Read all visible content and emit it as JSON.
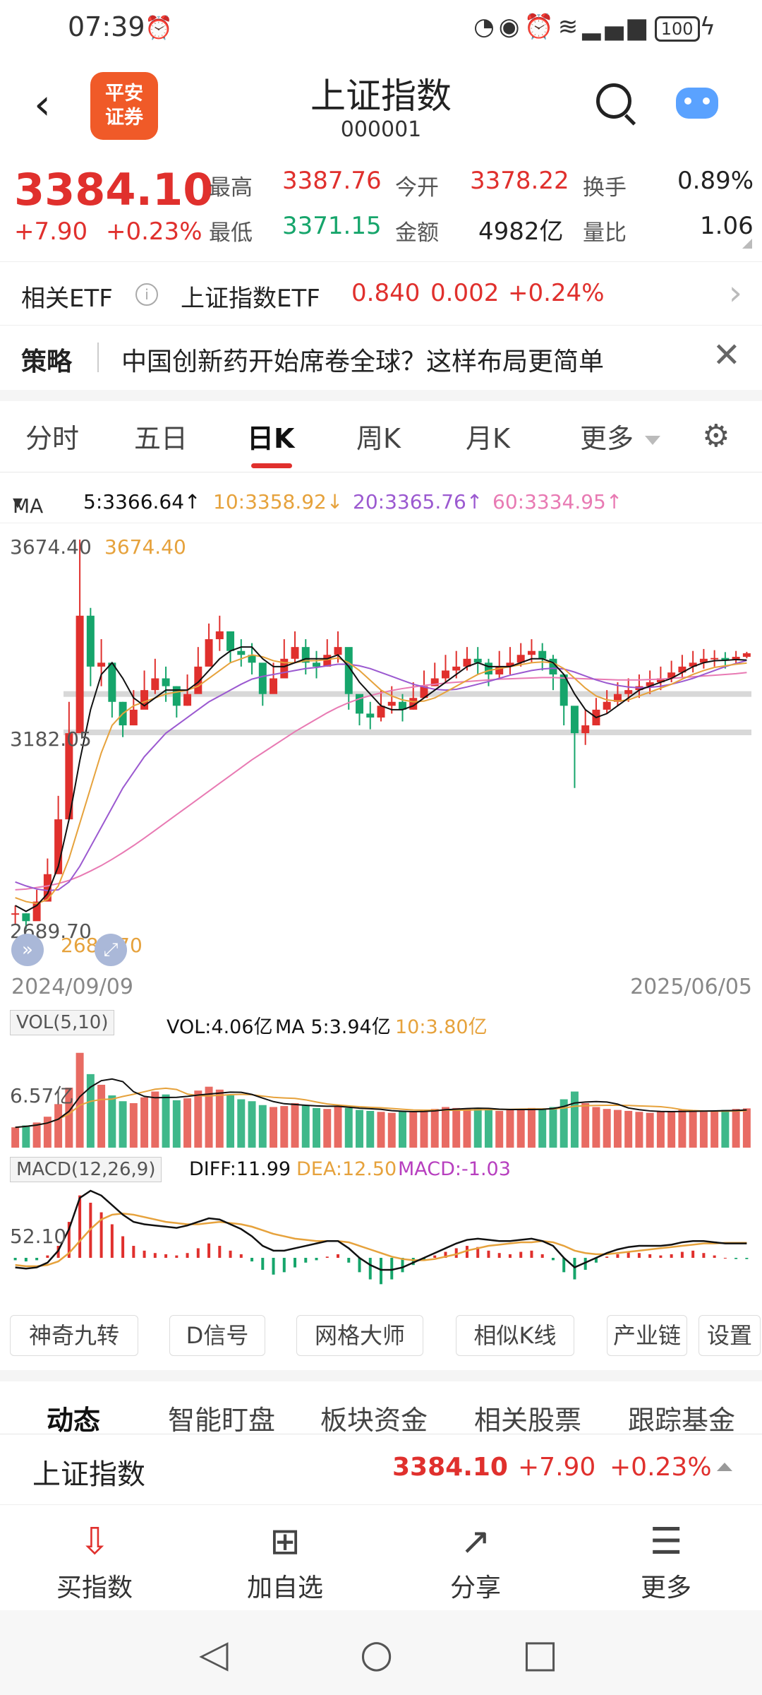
{
  "status": {
    "time": "07:39",
    "battery": "100"
  },
  "header": {
    "back_label": "‹",
    "logo_line1": "平安",
    "logo_line2": "证券",
    "title": "上证指数",
    "code": "000001"
  },
  "quote": {
    "price": "3384.10",
    "change": "+7.90",
    "change_pct": "+0.23%",
    "high_label": "最高",
    "high": "3387.76",
    "open_label": "今开",
    "open": "3378.22",
    "turnover_label": "换手",
    "turnover": "0.89%",
    "low_label": "最低",
    "low": "3371.15",
    "amount_label": "金额",
    "amount": "4982亿",
    "vol_ratio_label": "量比",
    "vol_ratio": "1.06"
  },
  "etf": {
    "label": "相关ETF",
    "info_icon": "i",
    "name": "上证指数ETF",
    "price": "0.840",
    "change": "0.002",
    "change_pct": "+0.24%"
  },
  "strategy": {
    "tag": "策略",
    "text": "中国创新药开始席卷全球？这样布局更简单",
    "close": "✕"
  },
  "tabs": {
    "items": [
      "分时",
      "五日",
      "日K",
      "周K",
      "月K",
      "更多"
    ],
    "active": "日K"
  },
  "ma": {
    "label": "MA",
    "ma5": "5:3366.64↑",
    "ma10": "10:3358.92↓",
    "ma20": "20:3365.76↑",
    "ma60": "60:3334.95↑",
    "colors": {
      "ma5": "#111111",
      "ma10": "#e6a23c",
      "ma20": "#9b59d0",
      "ma60": "#e87ab3"
    }
  },
  "chart": {
    "max_label": "3674.40",
    "max_tag": "3674.40",
    "mid_label": "3182.05",
    "min_label": "2689.70",
    "min_tag": "2689.70",
    "start_date": "2024/09/09",
    "end_date": "2025/06/05"
  },
  "vol": {
    "legend_box": "VOL(5,10)",
    "vol": "VOL:4.06亿",
    "ma5": "MA 5:3.94亿",
    "ma10": "10:3.80亿",
    "axis": "6.57亿"
  },
  "macd": {
    "legend_box": "MACD(12,26,9)",
    "diff": "DIFF:11.99",
    "dea": "DEA:12.50",
    "macd": "MACD:-1.03",
    "axis": "52.10"
  },
  "tools": [
    "神奇九转",
    "D信号",
    "网格大师",
    "相似K线",
    "产业链",
    "设置"
  ],
  "info_tabs": [
    "动态",
    "智能盯盘",
    "板块资金",
    "相关股票",
    "跟踪基金"
  ],
  "bottom_quote": {
    "name": "上证指数",
    "price": "3384.10",
    "change": "+7.90",
    "change_pct": "+0.23%"
  },
  "actions": [
    {
      "icon": "download-icon",
      "label": "买指数"
    },
    {
      "icon": "plus-icon",
      "label": "加自选"
    },
    {
      "icon": "share-icon",
      "label": "分享"
    },
    {
      "icon": "menu-icon",
      "label": "更多"
    }
  ],
  "chart_data": {
    "type": "candlestick",
    "title": "上证指数 日K",
    "x_range": [
      "2024/09/09",
      "2025/06/05"
    ],
    "ylim": [
      2689.7,
      3674.4
    ],
    "y_ticks": [
      3674.4,
      3182.05,
      2689.7
    ],
    "closes": [
      2720,
      2700,
      2750,
      2820,
      2960,
      3180,
      3480,
      3350,
      3360,
      3260,
      3200,
      3240,
      3290,
      3320,
      3300,
      3250,
      3280,
      3350,
      3420,
      3440,
      3390,
      3380,
      3360,
      3280,
      3320,
      3370,
      3400,
      3360,
      3350,
      3380,
      3400,
      3280,
      3230,
      3220,
      3250,
      3260,
      3240,
      3270,
      3300,
      3320,
      3340,
      3350,
      3370,
      3360,
      3330,
      3350,
      3360,
      3380,
      3390,
      3370,
      3330,
      3250,
      3180,
      3200,
      3240,
      3260,
      3280,
      3290,
      3300,
      3310,
      3320,
      3335,
      3350,
      3360,
      3370,
      3372,
      3366,
      3375,
      3384.1
    ],
    "highs": [
      2740,
      2720,
      2780,
      2860,
      3020,
      3260,
      3674.4,
      3500,
      3420,
      3330,
      3260,
      3290,
      3340,
      3370,
      3350,
      3300,
      3330,
      3400,
      3460,
      3480,
      3440,
      3420,
      3410,
      3330,
      3360,
      3420,
      3440,
      3420,
      3390,
      3420,
      3440,
      3330,
      3270,
      3260,
      3290,
      3300,
      3280,
      3310,
      3340,
      3360,
      3380,
      3390,
      3400,
      3400,
      3370,
      3390,
      3400,
      3410,
      3420,
      3410,
      3380,
      3300,
      3240,
      3240,
      3270,
      3290,
      3310,
      3320,
      3330,
      3340,
      3350,
      3365,
      3380,
      3390,
      3395,
      3392,
      3387,
      3390,
      3387.76
    ],
    "lows": [
      2689.7,
      2680,
      2720,
      2780,
      2920,
      3120,
      3300,
      3300,
      3300,
      3220,
      3170,
      3200,
      3250,
      3280,
      3260,
      3220,
      3250,
      3310,
      3380,
      3390,
      3360,
      3350,
      3330,
      3250,
      3290,
      3340,
      3360,
      3330,
      3320,
      3350,
      3360,
      3240,
      3200,
      3190,
      3210,
      3230,
      3210,
      3240,
      3270,
      3300,
      3310,
      3320,
      3340,
      3330,
      3300,
      3320,
      3330,
      3350,
      3360,
      3340,
      3290,
      3200,
      3040,
      3150,
      3200,
      3230,
      3250,
      3260,
      3270,
      3280,
      3290,
      3310,
      3320,
      3335,
      3345,
      3350,
      3345,
      3355,
      3371.15
    ],
    "ma5": [
      2740,
      2725,
      2740,
      2770,
      2840,
      2960,
      3110,
      3240,
      3330,
      3360,
      3320,
      3270,
      3250,
      3270,
      3290,
      3290,
      3290,
      3310,
      3340,
      3370,
      3390,
      3400,
      3400,
      3370,
      3350,
      3350,
      3360,
      3370,
      3370,
      3370,
      3380,
      3350,
      3310,
      3280,
      3250,
      3240,
      3240,
      3250,
      3270,
      3290,
      3310,
      3330,
      3350,
      3360,
      3350,
      3350,
      3350,
      3360,
      3370,
      3370,
      3360,
      3330,
      3280,
      3240,
      3220,
      3230,
      3250,
      3270,
      3290,
      3300,
      3310,
      3320,
      3335,
      3350,
      3360,
      3365,
      3366,
      3368,
      3366.64
    ],
    "ma10": [
      2760,
      2750,
      2745,
      2755,
      2790,
      2860,
      2950,
      3040,
      3130,
      3200,
      3230,
      3250,
      3260,
      3270,
      3280,
      3285,
      3290,
      3300,
      3320,
      3340,
      3360,
      3370,
      3380,
      3375,
      3365,
      3360,
      3360,
      3365,
      3365,
      3368,
      3372,
      3360,
      3340,
      3315,
      3290,
      3275,
      3265,
      3260,
      3262,
      3270,
      3285,
      3300,
      3315,
      3330,
      3340,
      3345,
      3350,
      3355,
      3360,
      3362,
      3360,
      3345,
      3320,
      3295,
      3275,
      3265,
      3262,
      3265,
      3275,
      3285,
      3295,
      3305,
      3318,
      3330,
      3340,
      3348,
      3352,
      3356,
      3358.92
    ],
    "ma20": [
      2800,
      2790,
      2782,
      2778,
      2780,
      2800,
      2840,
      2890,
      2940,
      2990,
      3040,
      3080,
      3120,
      3150,
      3180,
      3200,
      3220,
      3240,
      3260,
      3275,
      3290,
      3305,
      3318,
      3325,
      3330,
      3335,
      3340,
      3345,
      3348,
      3352,
      3356,
      3356,
      3352,
      3345,
      3335,
      3325,
      3315,
      3305,
      3298,
      3292,
      3290,
      3292,
      3298,
      3305,
      3312,
      3320,
      3328,
      3334,
      3340,
      3344,
      3346,
      3344,
      3336,
      3326,
      3316,
      3308,
      3302,
      3298,
      3296,
      3297,
      3300,
      3305,
      3312,
      3320,
      3330,
      3340,
      3350,
      3358,
      3365.76
    ],
    "ma60": [
      2780,
      2782,
      2786,
      2790,
      2796,
      2804,
      2815,
      2828,
      2842,
      2858,
      2875,
      2893,
      2912,
      2932,
      2952,
      2972,
      2992,
      3012,
      3032,
      3052,
      3072,
      3092,
      3112,
      3130,
      3148,
      3166,
      3184,
      3200,
      3216,
      3232,
      3246,
      3258,
      3268,
      3276,
      3283,
      3289,
      3294,
      3298,
      3302,
      3305,
      3308,
      3310,
      3312,
      3314,
      3316,
      3318,
      3319,
      3320,
      3321,
      3322,
      3322,
      3321,
      3320,
      3319,
      3318,
      3317,
      3316,
      3316,
      3316,
      3317,
      3318,
      3320,
      3322,
      3324,
      3326,
      3328,
      3330,
      3332,
      3334.95
    ],
    "support_lines": [
      3182.05,
      3280
    ],
    "vol_values": [
      2.1,
      2.3,
      2.6,
      3.2,
      4.5,
      6.2,
      9.8,
      7.6,
      6.5,
      5.4,
      4.8,
      4.6,
      5.2,
      5.8,
      5.5,
      4.9,
      5.1,
      5.9,
      6.3,
      6.0,
      5.4,
      5.0,
      4.8,
      4.4,
      4.2,
      4.3,
      4.6,
      4.4,
      4.1,
      4.0,
      4.3,
      4.1,
      3.9,
      3.8,
      3.7,
      3.6,
      3.8,
      3.7,
      3.9,
      4.0,
      4.2,
      4.1,
      4.0,
      4.1,
      3.9,
      3.8,
      3.9,
      4.0,
      4.1,
      4.0,
      4.2,
      5.0,
      5.8,
      4.6,
      4.2,
      4.0,
      3.9,
      3.8,
      3.7,
      3.6,
      3.7,
      3.8,
      3.9,
      3.8,
      3.7,
      3.8,
      3.9,
      4.0,
      4.06
    ],
    "macd_hist": [
      -2,
      -3,
      -2,
      2,
      10,
      30,
      52.1,
      46,
      38,
      28,
      18,
      10,
      6,
      4,
      3,
      2,
      4,
      8,
      12,
      10,
      6,
      3,
      -3,
      -10,
      -14,
      -12,
      -8,
      -4,
      -2,
      1,
      3,
      -4,
      -12,
      -18,
      -22,
      -18,
      -12,
      -6,
      -2,
      2,
      5,
      8,
      10,
      9,
      6,
      4,
      3,
      5,
      6,
      3,
      -2,
      -12,
      -18,
      -10,
      -4,
      1,
      3,
      5,
      4,
      3,
      2,
      3,
      5,
      6,
      4,
      2,
      0,
      -1,
      -1.03
    ],
    "diff_line": [
      -8,
      -9,
      -8,
      -4,
      6,
      24,
      50,
      56,
      52,
      44,
      36,
      30,
      28,
      27,
      26,
      25,
      27,
      30,
      33,
      32,
      28,
      24,
      18,
      10,
      6,
      6,
      8,
      10,
      12,
      14,
      14,
      8,
      0,
      -6,
      -10,
      -10,
      -8,
      -4,
      0,
      4,
      8,
      12,
      15,
      16,
      15,
      14,
      14,
      15,
      16,
      14,
      10,
      0,
      -8,
      -4,
      0,
      4,
      7,
      9,
      10,
      10,
      10,
      11,
      13,
      14,
      14,
      13,
      12,
      12,
      11.99
    ],
    "dea_line": [
      -6,
      -7,
      -7,
      -6,
      -3,
      4,
      14,
      24,
      32,
      36,
      37,
      36,
      34,
      32,
      30,
      29,
      28,
      28,
      29,
      30,
      29,
      28,
      26,
      23,
      20,
      18,
      16,
      15,
      14,
      14,
      14,
      13,
      10,
      7,
      4,
      1,
      -1,
      -2,
      -2,
      -1,
      1,
      3,
      6,
      8,
      10,
      11,
      12,
      13,
      13,
      14,
      13,
      10,
      6,
      4,
      3,
      3,
      4,
      5,
      6,
      7,
      8,
      9,
      10,
      11,
      12,
      12,
      12.5,
      12.5,
      12.5
    ]
  }
}
